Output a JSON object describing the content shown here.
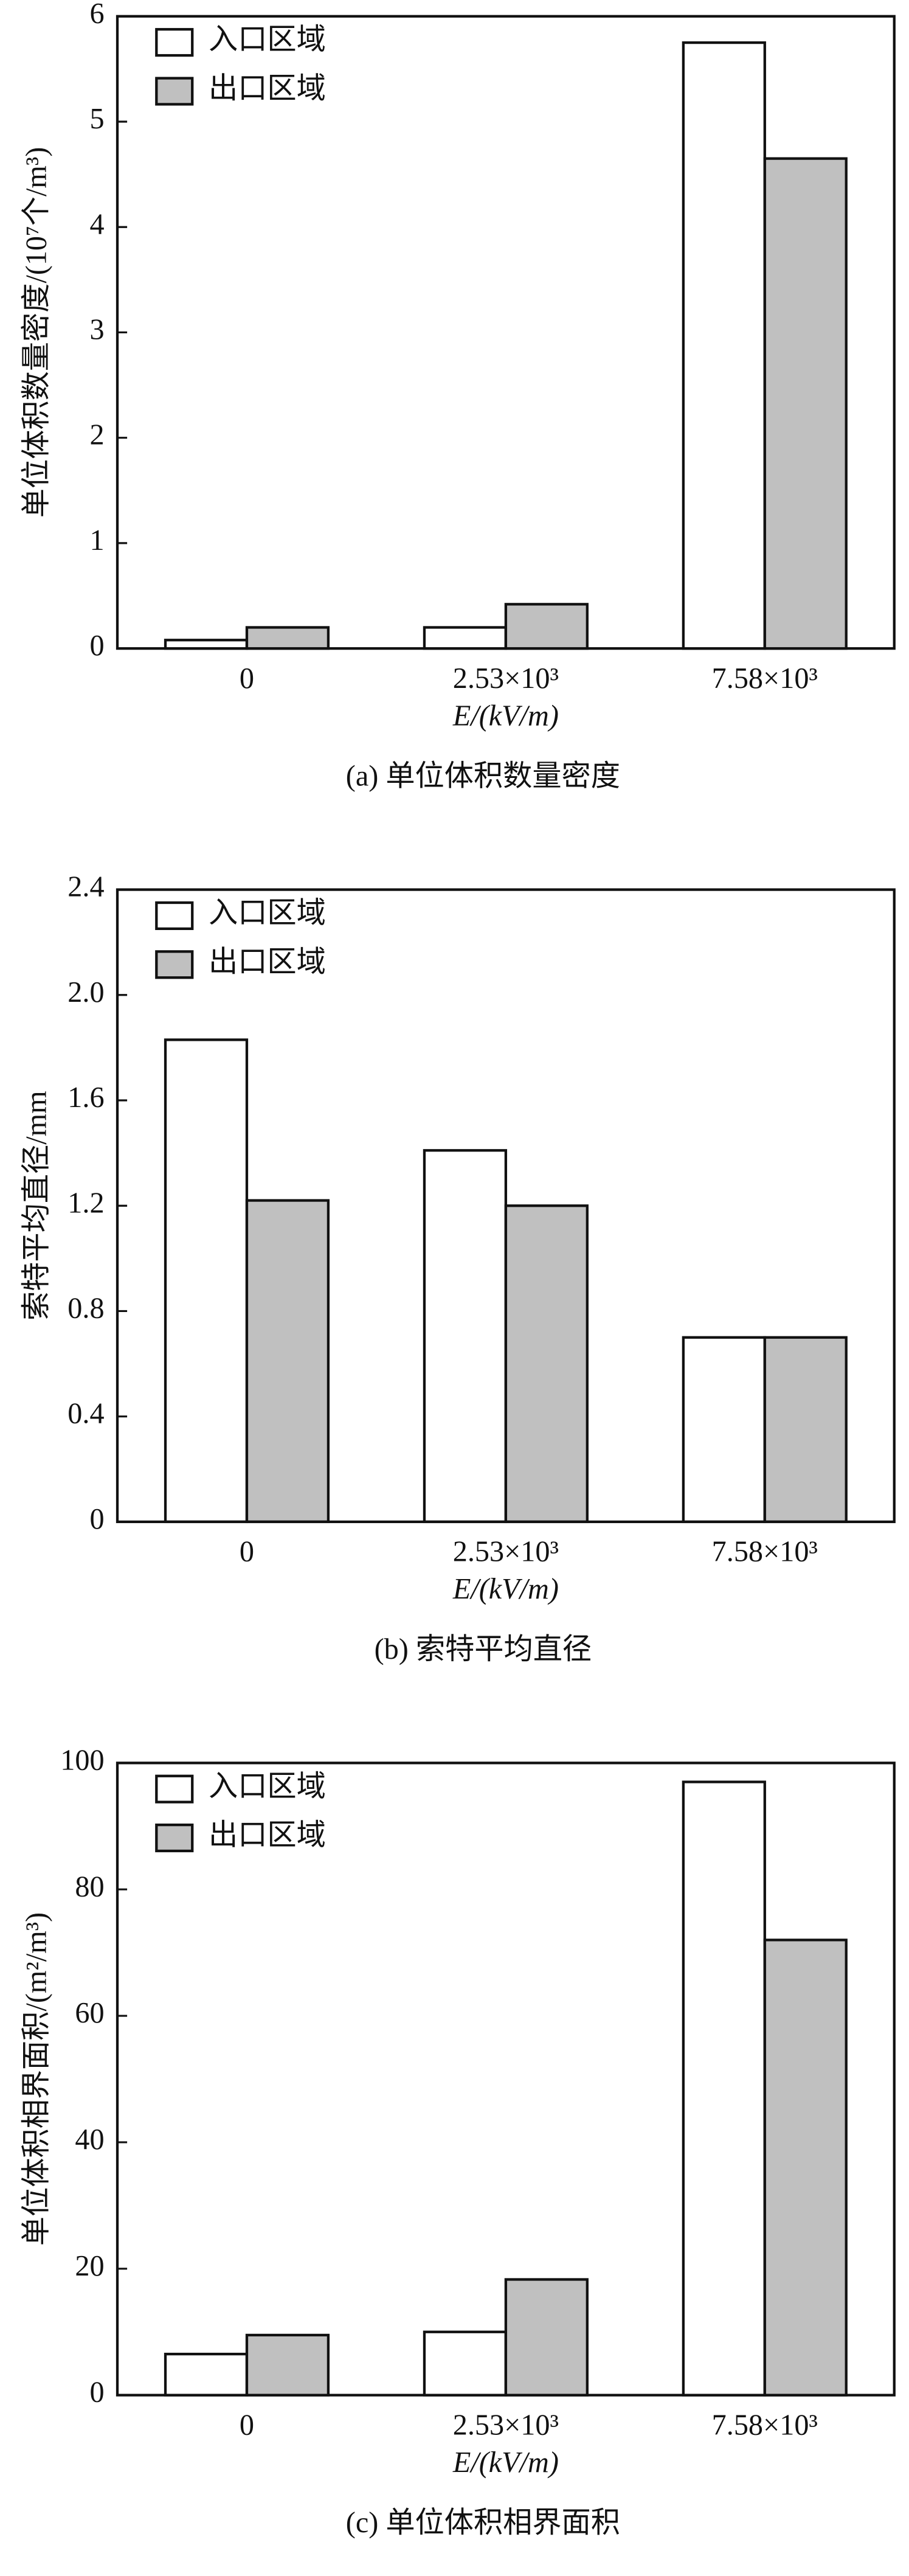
{
  "chart_data": [
    {
      "type": "bar",
      "title": "(a) 单位体积数量密度",
      "ylabel": "单位体积数量密度/(10⁷个/m³)",
      "xlabel": "E/(kV/m)",
      "categories": [
        "0",
        "2.53×10³",
        "7.58×10³"
      ],
      "series": [
        {
          "name": "入口区域",
          "color": "#ffffff",
          "values": [
            0.08,
            0.2,
            5.75
          ]
        },
        {
          "name": "出口区域",
          "color": "#c0c0c0",
          "values": [
            0.2,
            0.42,
            4.65
          ]
        }
      ],
      "ylim": [
        0,
        6
      ],
      "yticks": [
        0,
        1,
        2,
        3,
        4,
        5,
        6
      ],
      "legend": "upper left"
    },
    {
      "type": "bar",
      "title": "(b) 索特平均直径",
      "ylabel": "索特平均直径/mm",
      "xlabel": "E/(kV/m)",
      "categories": [
        "0",
        "2.53×10³",
        "7.58×10³"
      ],
      "series": [
        {
          "name": "入口区域",
          "color": "#ffffff",
          "values": [
            1.83,
            1.41,
            0.7
          ]
        },
        {
          "name": "出口区域",
          "color": "#c0c0c0",
          "values": [
            1.22,
            1.2,
            0.7
          ]
        }
      ],
      "ylim": [
        0,
        2.4
      ],
      "yticks": [
        0,
        0.4,
        0.8,
        1.2,
        1.6,
        {
          "value": 2,
          "label": "2.0"
        },
        2.4
      ],
      "legend": "upper left"
    },
    {
      "type": "bar",
      "title": "(c) 单位体积相界面积",
      "ylabel": "单位体积相界面积/(m²/m³)",
      "xlabel": "E/(kV/m)",
      "categories": [
        "0",
        "2.53×10³",
        "7.58×10³"
      ],
      "series": [
        {
          "name": "入口区域",
          "color": "#ffffff",
          "values": [
            6.5,
            10,
            97
          ]
        },
        {
          "name": "出口区域",
          "color": "#c0c0c0",
          "values": [
            9.5,
            18.3,
            72
          ]
        }
      ],
      "ylim": [
        0,
        100
      ],
      "yticks": [
        0,
        20,
        40,
        60,
        80,
        100
      ],
      "legend": "upper left"
    }
  ]
}
